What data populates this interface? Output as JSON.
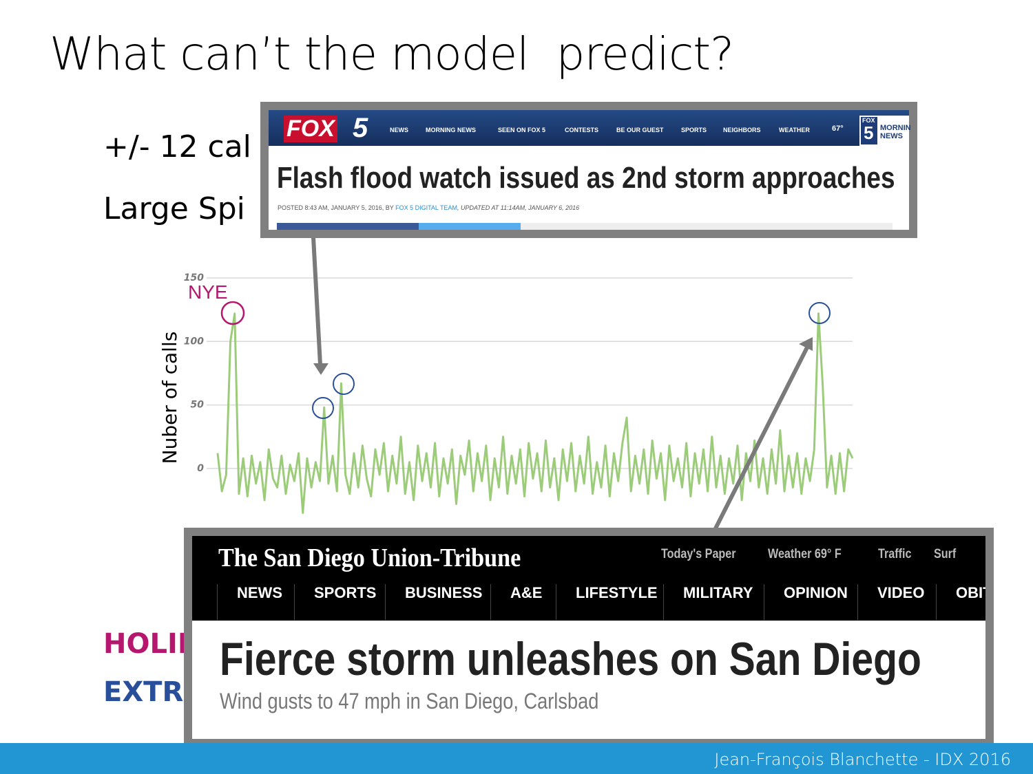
{
  "slide": {
    "title": "What can’t the model  predict?",
    "bullets": [
      "+/- 12 cal",
      "Large Spi"
    ],
    "legend": [
      "HOLID",
      "EXTRE"
    ],
    "footer": "Jean-François Blanchette - IDX 2016"
  },
  "chart_data": {
    "type": "line",
    "y_label": "Nuber of calls",
    "annotation": "NYE",
    "color": "#9ccc7a",
    "ylim": [
      -40,
      150
    ],
    "yticks": [
      0,
      50,
      100,
      150
    ],
    "grid": true,
    "values": [
      12,
      -18,
      -5,
      100,
      122,
      -20,
      8,
      -22,
      10,
      -12,
      5,
      -25,
      15,
      -8,
      -15,
      10,
      -20,
      3,
      -10,
      12,
      -35,
      8,
      -15,
      5,
      -10,
      48,
      -12,
      10,
      -18,
      67,
      -5,
      -20,
      12,
      -15,
      18,
      -8,
      -22,
      15,
      -5,
      20,
      -18,
      10,
      -12,
      25,
      -20,
      5,
      -25,
      18,
      -10,
      12,
      -15,
      20,
      -22,
      8,
      -12,
      15,
      -28,
      10,
      -5,
      22,
      -18,
      12,
      -10,
      18,
      -25,
      8,
      -15,
      25,
      -20,
      10,
      -12,
      15,
      -22,
      20,
      -8,
      12,
      -18,
      22,
      -15,
      8,
      -25,
      15,
      -10,
      20,
      -18,
      10,
      -12,
      25,
      -20,
      5,
      -15,
      18,
      -22,
      12,
      -10,
      20,
      40,
      -18,
      10,
      -12,
      15,
      -20,
      22,
      -8,
      12,
      -25,
      18,
      -10,
      8,
      -15,
      20,
      -22,
      12,
      -12,
      15,
      -18,
      25,
      -15,
      10,
      -20,
      8,
      -12,
      18,
      -25,
      12,
      -10,
      22,
      -15,
      8,
      -20,
      15,
      -12,
      30,
      -18,
      10,
      -15,
      12,
      -20,
      8,
      -10,
      15,
      122,
      65,
      -15,
      10,
      -20,
      12,
      -18,
      15,
      8
    ]
  },
  "fox5": {
    "logo": "FOX",
    "logo_number": "5",
    "nav": [
      "NEWS",
      "MORNING NEWS",
      "SEEN ON FOX 5",
      "CONTESTS",
      "BE OUR GUEST",
      "SPORTS",
      "NEIGHBORS",
      "WEATHER"
    ],
    "temp": "67°",
    "side_logo": [
      "FOX",
      "5",
      "MORNIN",
      "NEWS"
    ],
    "headline": "Flash flood watch issued as 2nd storm approaches",
    "byline": [
      "POSTED 8:43 AM, JANUARY 5, 2016, BY ",
      "FOX 5 DIGITAL TEAM",
      ", UPDATED AT 11:14AM, JANUARY 6, 2016"
    ]
  },
  "union_tribune": {
    "masthead": "The San Diego Union-Tribune",
    "top_links": [
      "Today's Paper",
      "Weather 69° F",
      "Traffic",
      "Surf"
    ],
    "nav": [
      "NEWS",
      "SPORTS",
      "BUSINESS",
      "A&E",
      "LIFESTYLE",
      "MILITARY",
      "OPINION",
      "VIDEO",
      "OBIT"
    ],
    "headline": "Fierce storm unleashes on San Diego",
    "subhead": "Wind gusts to 47 mph in San Diego, Carlsbad"
  }
}
